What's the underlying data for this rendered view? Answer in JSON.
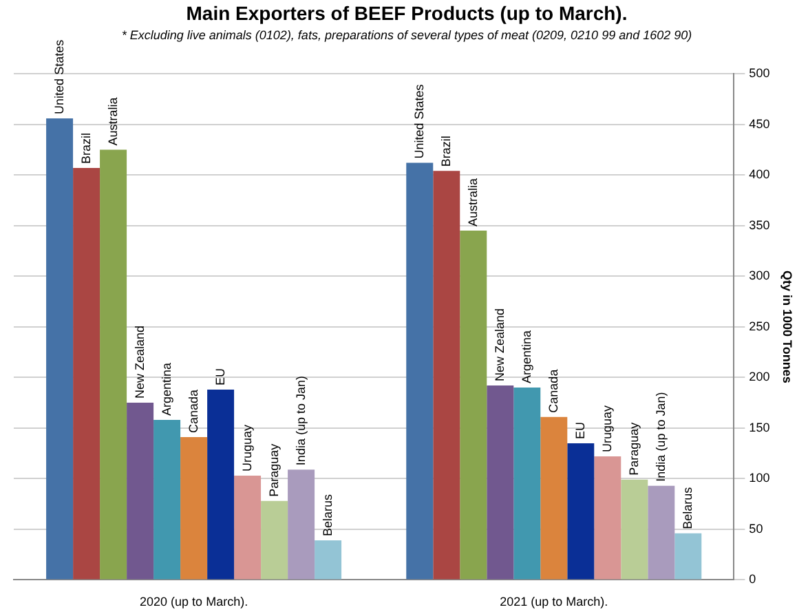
{
  "chart_data": {
    "type": "bar",
    "title": "Main Exporters of BEEF Products (up to March).",
    "subtitle": "* Excluding live animals (0102), fats, preparations of several types of meat (0209, 0210 99 and 1602 90)",
    "ylabel": "Qty in 1000 Tonnes",
    "categories": [
      "2020 (up to March).",
      "2021 (up to March)."
    ],
    "series": [
      {
        "name": "United States",
        "color": "#4572a7",
        "values": [
          456,
          412
        ]
      },
      {
        "name": "Brazil",
        "color": "#aa4643",
        "values": [
          407,
          404
        ]
      },
      {
        "name": "Australia",
        "color": "#89a54e",
        "values": [
          425,
          345
        ]
      },
      {
        "name": "New Zealand",
        "color": "#71588f",
        "values": [
          175,
          192
        ]
      },
      {
        "name": "Argentina",
        "color": "#4198af",
        "values": [
          158,
          190
        ]
      },
      {
        "name": "Canada",
        "color": "#db843d",
        "values": [
          141,
          161
        ]
      },
      {
        "name": "EU",
        "color": "#0a2f96",
        "values": [
          188,
          135
        ]
      },
      {
        "name": "Uruguay",
        "color": "#d99694",
        "values": [
          103,
          122
        ]
      },
      {
        "name": "Paraguay",
        "color": "#b9cd96",
        "values": [
          78,
          99
        ]
      },
      {
        "name": "India (up to Jan)",
        "color": "#a99bbd",
        "values": [
          109,
          93
        ]
      },
      {
        "name": "Belarus",
        "color": "#93c4d5",
        "values": [
          39,
          46
        ]
      }
    ],
    "ylim": [
      0,
      500
    ],
    "yticks": [
      0,
      50,
      100,
      150,
      200,
      250,
      300,
      350,
      400,
      450,
      500
    ],
    "grid": "y",
    "legend": false
  }
}
